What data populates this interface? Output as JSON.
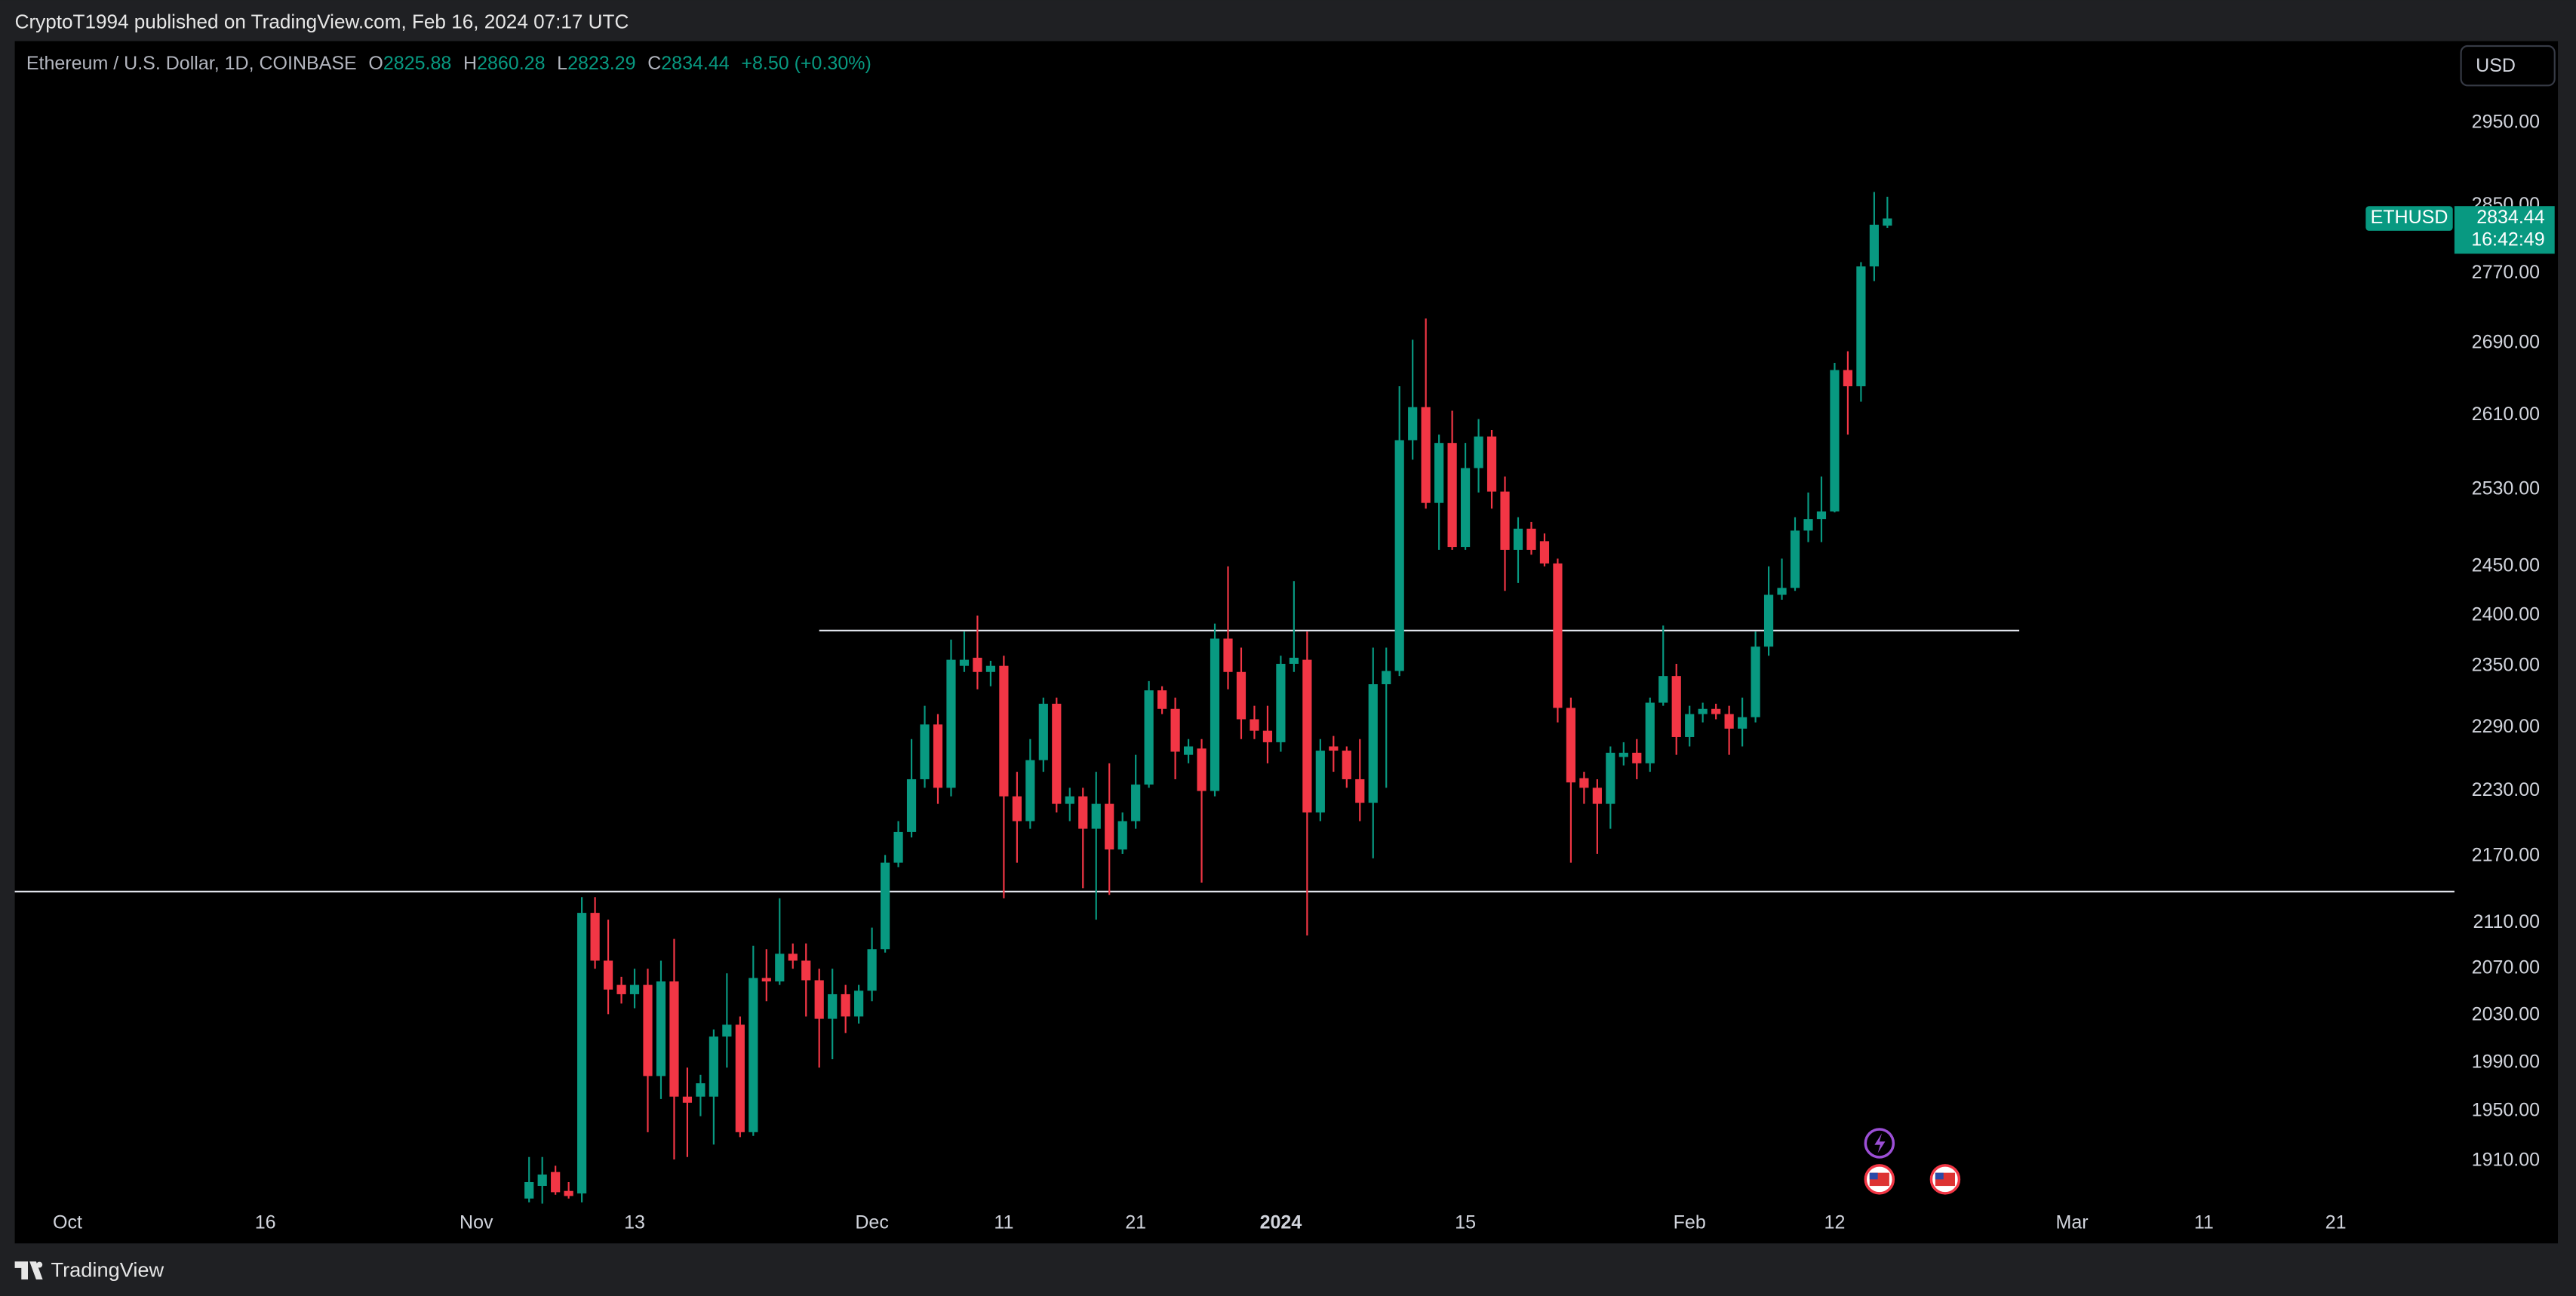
{
  "header": {
    "byline": "CryptoT1994 published on TradingView.com, Feb 16, 2024 07:17 UTC",
    "brand": "TradingView"
  },
  "chart_data": {
    "type": "candlestick",
    "title": "Ethereum / U.S. Dollar, 1D, COINBASE",
    "symbol": "ETHUSD",
    "currency": "USD",
    "countdown": "16:42:49",
    "change": "+8.50 (+0.30%)",
    "ohlc_labels": [
      "O",
      "H",
      "L",
      "C"
    ],
    "up_color": "#089981",
    "down_color": "#f23645",
    "log_scale": true,
    "grid": false,
    "x": [
      "2023-11-05",
      "2023-11-06",
      "2023-11-07",
      "2023-11-08",
      "2023-11-09",
      "2023-11-10",
      "2023-11-11",
      "2023-11-12",
      "2023-11-13",
      "2023-11-14",
      "2023-11-15",
      "2023-11-16",
      "2023-11-17",
      "2023-11-18",
      "2023-11-19",
      "2023-11-20",
      "2023-11-21",
      "2023-11-22",
      "2023-11-23",
      "2023-11-24",
      "2023-11-25",
      "2023-11-26",
      "2023-11-27",
      "2023-11-28",
      "2023-11-29",
      "2023-11-30",
      "2023-12-01",
      "2023-12-02",
      "2023-12-03",
      "2023-12-04",
      "2023-12-05",
      "2023-12-06",
      "2023-12-07",
      "2023-12-08",
      "2023-12-09",
      "2023-12-10",
      "2023-12-11",
      "2023-12-12",
      "2023-12-13",
      "2023-12-14",
      "2023-12-15",
      "2023-12-16",
      "2023-12-17",
      "2023-12-18",
      "2023-12-19",
      "2023-12-20",
      "2023-12-21",
      "2023-12-22",
      "2023-12-23",
      "2023-12-24",
      "2023-12-25",
      "2023-12-26",
      "2023-12-27",
      "2023-12-28",
      "2023-12-29",
      "2023-12-30",
      "2023-12-31",
      "2024-01-01",
      "2024-01-02",
      "2024-01-03",
      "2024-01-04",
      "2024-01-05",
      "2024-01-06",
      "2024-01-07",
      "2024-01-08",
      "2024-01-09",
      "2024-01-10",
      "2024-01-11",
      "2024-01-12",
      "2024-01-13",
      "2024-01-14",
      "2024-01-15",
      "2024-01-16",
      "2024-01-17",
      "2024-01-18",
      "2024-01-19",
      "2024-01-20",
      "2024-01-21",
      "2024-01-22",
      "2024-01-23",
      "2024-01-24",
      "2024-01-25",
      "2024-01-26",
      "2024-01-27",
      "2024-01-28",
      "2024-01-29",
      "2024-01-30",
      "2024-01-31",
      "2024-02-01",
      "2024-02-02",
      "2024-02-03",
      "2024-02-04",
      "2024-02-05",
      "2024-02-06",
      "2024-02-07",
      "2024-02-08",
      "2024-02-09",
      "2024-02-10",
      "2024-02-11",
      "2024-02-12",
      "2024-02-13",
      "2024-02-14",
      "2024-02-15",
      "2024-02-16"
    ],
    "open": [
      1880,
      1890,
      1901,
      1886,
      1884,
      2119,
      2077,
      2056,
      2048,
      2056,
      1979,
      2059,
      1962,
      1962,
      1962,
      2012,
      2022,
      1933,
      2062,
      2059,
      2083,
      2077,
      2060,
      2027,
      2048,
      2029,
      2051,
      2087,
      2164,
      2192,
      2241,
      2293,
      2233,
      2350,
      2358,
      2344,
      2350,
      2225,
      2202,
      2259,
      2313,
      2218,
      2225,
      2195,
      2218,
      2176,
      2202,
      2236,
      2326,
      2308,
      2264,
      2270,
      2230,
      2377,
      2344,
      2298,
      2287,
      2276,
      2352,
      2356,
      2210,
      2272,
      2268,
      2241,
      2219,
      2332,
      2345,
      2583,
      2619,
      2516,
      2580,
      2470,
      2553,
      2587,
      2528,
      2467,
      2489,
      2476,
      2453,
      2309,
      2242,
      2233,
      2218,
      2262,
      2266,
      2256,
      2314,
      2340,
      2281,
      2303,
      2308,
      2303,
      2289,
      2300,
      2369,
      2421,
      2428,
      2487,
      2499,
      2507,
      2660,
      2642,
      2778,
      2825.88
    ],
    "high": [
      1913,
      1913,
      1906,
      1893,
      2133,
      2133,
      2113,
      2063,
      2070,
      2070,
      2077,
      2096,
      1986,
      1980,
      2018,
      2066,
      2029,
      2090,
      2087,
      2132,
      2092,
      2092,
      2070,
      2070,
      2056,
      2056,
      2106,
      2171,
      2202,
      2279,
      2311,
      2303,
      2376,
      2384,
      2400,
      2355,
      2360,
      2248,
      2279,
      2319,
      2319,
      2233,
      2233,
      2248,
      2256,
      2210,
      2264,
      2335,
      2330,
      2319,
      2279,
      2279,
      2392,
      2450,
      2368,
      2311,
      2311,
      2360,
      2435,
      2384,
      2279,
      2282,
      2272,
      2279,
      2368,
      2368,
      2642,
      2694,
      2718,
      2589,
      2615,
      2580,
      2606,
      2594,
      2544,
      2501,
      2496,
      2484,
      2458,
      2319,
      2248,
      2241,
      2272,
      2276,
      2279,
      2319,
      2390,
      2352,
      2311,
      2314,
      2313,
      2311,
      2319,
      2384,
      2450,
      2458,
      2501,
      2527,
      2544,
      2668,
      2681,
      2783,
      2866,
      2860.28
    ],
    "low": [
      1877,
      1876,
      1883,
      1880,
      1877,
      2070,
      2031,
      2040,
      2036,
      1933,
      1960,
      1911,
      1913,
      1946,
      1923,
      1986,
      1929,
      1930,
      2042,
      2056,
      2070,
      2029,
      1986,
      1993,
      2015,
      2023,
      2042,
      2084,
      2160,
      2187,
      2233,
      2218,
      2225,
      2344,
      2327,
      2330,
      2132,
      2164,
      2195,
      2248,
      2210,
      2202,
      2141,
      2113,
      2135,
      2172,
      2195,
      2233,
      2303,
      2241,
      2256,
      2146,
      2225,
      2327,
      2279,
      2279,
      2256,
      2267,
      2344,
      2099,
      2202,
      2248,
      2233,
      2202,
      2168,
      2233,
      2340,
      2562,
      2510,
      2467,
      2467,
      2467,
      2527,
      2510,
      2425,
      2433,
      2462,
      2450,
      2295,
      2164,
      2218,
      2172,
      2195,
      2254,
      2241,
      2248,
      2311,
      2264,
      2272,
      2295,
      2298,
      2264,
      2272,
      2295,
      2360,
      2416,
      2425,
      2475,
      2475,
      2506,
      2589,
      2625,
      2761,
      2823.29
    ],
    "close": [
      1893,
      1899,
      1885,
      1882,
      2119,
      2077,
      2052,
      2048,
      2056,
      1979,
      2059,
      1962,
      1957,
      1973,
      2012,
      2022,
      1933,
      2062,
      2059,
      2083,
      2077,
      2060,
      2027,
      2048,
      2029,
      2051,
      2087,
      2164,
      2192,
      2241,
      2293,
      2233,
      2356,
      2356,
      2344,
      2350,
      2225,
      2202,
      2259,
      2313,
      2218,
      2225,
      2195,
      2218,
      2176,
      2202,
      2236,
      2326,
      2308,
      2267,
      2272,
      2230,
      2377,
      2344,
      2298,
      2287,
      2276,
      2352,
      2358,
      2210,
      2268,
      2268,
      2241,
      2219,
      2332,
      2345,
      2583,
      2619,
      2516,
      2580,
      2470,
      2553,
      2587,
      2528,
      2467,
      2489,
      2467,
      2453,
      2309,
      2238,
      2233,
      2218,
      2266,
      2266,
      2256,
      2314,
      2340,
      2281,
      2303,
      2308,
      2303,
      2289,
      2300,
      2369,
      2421,
      2428,
      2487,
      2499,
      2507,
      2660,
      2642,
      2778,
      2827,
      2834.44
    ],
    "xlim": [
      "2023-09-27",
      "2024-03-30"
    ],
    "xticks": [
      {
        "value": "2023-10-01",
        "label": "Oct"
      },
      {
        "value": "2023-10-16",
        "label": "16"
      },
      {
        "value": "2023-11-01",
        "label": "Nov"
      },
      {
        "value": "2023-11-13",
        "label": "13"
      },
      {
        "value": "2023-12-01",
        "label": "Dec"
      },
      {
        "value": "2023-12-11",
        "label": "11"
      },
      {
        "value": "2023-12-21",
        "label": "21"
      },
      {
        "value": "2024-01-01",
        "label": "2024"
      },
      {
        "value": "2024-01-15",
        "label": "15"
      },
      {
        "value": "2024-02-01",
        "label": "Feb"
      },
      {
        "value": "2024-02-12",
        "label": "12"
      },
      {
        "value": "2024-03-01",
        "label": "Mar"
      },
      {
        "value": "2024-03-11",
        "label": "11"
      },
      {
        "value": "2024-03-21",
        "label": "21"
      }
    ],
    "ylim": [
      1845,
      3053
    ],
    "yticks": [
      {
        "value": 1910,
        "label": "1910.00"
      },
      {
        "value": 1950,
        "label": "1950.00"
      },
      {
        "value": 1990,
        "label": "1990.00"
      },
      {
        "value": 2030,
        "label": "2030.00"
      },
      {
        "value": 2070,
        "label": "2070.00"
      },
      {
        "value": 2110,
        "label": "2110.00"
      },
      {
        "value": 2170,
        "label": "2170.00"
      },
      {
        "value": 2230,
        "label": "2230.00"
      },
      {
        "value": 2290,
        "label": "2290.00"
      },
      {
        "value": 2350,
        "label": "2350.00"
      },
      {
        "value": 2400,
        "label": "2400.00"
      },
      {
        "value": 2450,
        "label": "2450.00"
      },
      {
        "value": 2530,
        "label": "2530.00"
      },
      {
        "value": 2610,
        "label": "2610.00"
      },
      {
        "value": 2690,
        "label": "2690.00"
      },
      {
        "value": 2770,
        "label": "2770.00"
      },
      {
        "value": 2850,
        "label": "2850.00"
      },
      {
        "value": 2950,
        "label": "2950.00"
      }
    ],
    "drawings": [
      {
        "price": 2385,
        "x": [
          "2023-11-27",
          "2024-02-26"
        ]
      },
      {
        "price": 2138
      }
    ]
  }
}
